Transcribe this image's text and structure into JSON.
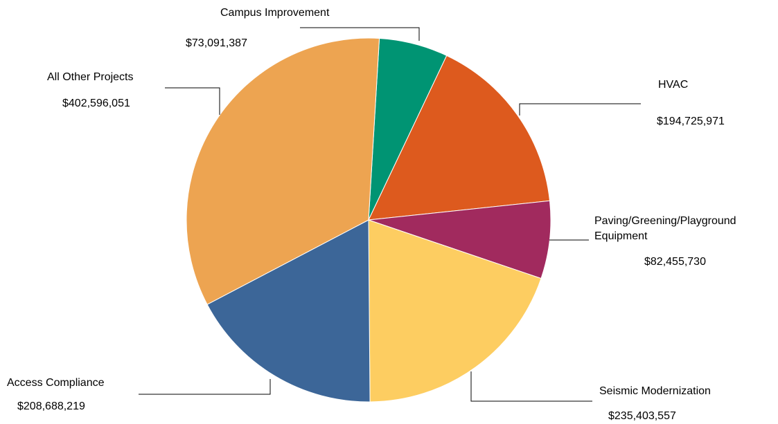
{
  "chart_data": {
    "type": "pie",
    "title": "",
    "slices": [
      {
        "name": "Campus Improvement",
        "label_lines": [
          "Campus Improvement"
        ],
        "value": 73091387,
        "value_label": "$73,091,387",
        "color": "#009473"
      },
      {
        "name": "HVAC",
        "label_lines": [
          "HVAC"
        ],
        "value": 194725971,
        "value_label": "$194,725,971",
        "color": "#DD5A1E"
      },
      {
        "name": "Paving/Greening/Playground Equipment",
        "label_lines": [
          "Paving/Greening/Playground",
          "Equipment"
        ],
        "value": 82455730,
        "value_label": "$82,455,730",
        "color": "#A12A5E"
      },
      {
        "name": "Seismic Modernization",
        "label_lines": [
          "Seismic Modernization"
        ],
        "value": 235403557,
        "value_label": "$235,403,557",
        "color": "#FDCD61"
      },
      {
        "name": "Access Compliance",
        "label_lines": [
          "Access Compliance"
        ],
        "value": 208688219,
        "value_label": "$208,688,219",
        "color": "#3C6698"
      },
      {
        "name": "All Other Projects",
        "label_lines": [
          "All Other Projects"
        ],
        "value": 402596051,
        "value_label": "$402,596,051",
        "color": "#EDA451"
      }
    ]
  }
}
